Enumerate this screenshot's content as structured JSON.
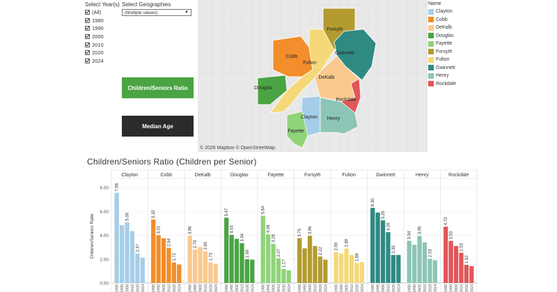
{
  "filters": {
    "years_label": "Select Year(s)",
    "years": [
      "(All)",
      "1980",
      "1990",
      "2000",
      "2010",
      "2020",
      "2024"
    ],
    "geo_label": "Select Geographies",
    "geo_value": "(Multiple values)"
  },
  "buttons": {
    "ratio": "Children/Seniors Ratio",
    "median": "Median Age"
  },
  "map": {
    "credit": "© 2026 Mapbox  © OpenStreetMap",
    "labels": [
      "Forsyth",
      "Cobb",
      "Fulton",
      "Gwinnett",
      "DeKalb",
      "Douglas",
      "Rockdale",
      "Clayton",
      "Henry",
      "Fayette"
    ]
  },
  "legend": {
    "title": "Name",
    "items": [
      {
        "name": "Clayton",
        "color": "#a6cde8"
      },
      {
        "name": "Cobb",
        "color": "#f28e2b"
      },
      {
        "name": "DeKalb",
        "color": "#fbc98e"
      },
      {
        "name": "Douglas",
        "color": "#4aa443"
      },
      {
        "name": "Fayette",
        "color": "#8fd37a"
      },
      {
        "name": "Forsyth",
        "color": "#b39b2f"
      },
      {
        "name": "Fulton",
        "color": "#f5d878"
      },
      {
        "name": "Gwinnett",
        "color": "#2f8a84"
      },
      {
        "name": "Henry",
        "color": "#8cc5b5"
      },
      {
        "name": "Rockdale",
        "color": "#e15759"
      }
    ]
  },
  "chart_title": "Children/Seniors Ratio (Children per Senior)",
  "chart_data": {
    "type": "bar",
    "ylabel": "Children/Seniors Ratio",
    "ylim": [
      0,
      9
    ],
    "yticks": [
      "0.00",
      "2.00",
      "4.00",
      "6.00",
      "8.00"
    ],
    "year_ticks": [
      "1980",
      "1990",
      "2000",
      "2010",
      "2020",
      "2024"
    ],
    "series": [
      {
        "name": "Clayton",
        "color": "#a6cde8",
        "values": [
          7.56,
          4.85,
          5.09,
          4.35,
          2.47,
          2.12
        ],
        "labels": [
          "7.56",
          "",
          "5.09",
          "",
          "2.47",
          ""
        ]
      },
      {
        "name": "Cobb",
        "color": "#f28e2b",
        "values": [
          5.32,
          4.01,
          3.75,
          2.94,
          1.72,
          1.55
        ],
        "labels": [
          "5.32",
          "4.01",
          "",
          "2.94",
          "1.72",
          ""
        ]
      },
      {
        "name": "DeKalb",
        "color": "#fbc98e",
        "values": [
          3.96,
          2.79,
          3.02,
          2.65,
          1.73,
          1.6
        ],
        "labels": [
          "3.96",
          "2.79",
          "",
          "2.65",
          "1.73",
          ""
        ]
      },
      {
        "name": "Douglas",
        "color": "#4aa443",
        "values": [
          5.47,
          4.03,
          3.7,
          3.34,
          1.99,
          1.95
        ],
        "labels": [
          "5.47",
          "4.03",
          "",
          "3.34",
          "1.99",
          ""
        ]
      },
      {
        "name": "Fayette",
        "color": "#8fd37a",
        "values": [
          5.64,
          4.08,
          3.28,
          2.07,
          1.17,
          1.05
        ],
        "labels": [
          "5.64",
          "4.08",
          "3.28",
          "2.07",
          "1.17",
          ""
        ]
      },
      {
        "name": "Forsyth",
        "color": "#b39b2f",
        "values": [
          3.75,
          2.9,
          3.96,
          3.1,
          2.22,
          1.95
        ],
        "labels": [
          "3.75",
          "",
          "3.96",
          "",
          "2.22",
          ""
        ]
      },
      {
        "name": "Fulton",
        "color": "#f5d878",
        "values": [
          2.59,
          2.45,
          2.89,
          2.35,
          1.68,
          1.75
        ],
        "labels": [
          "2.59",
          "",
          "2.89",
          "",
          "1.68",
          ""
        ]
      },
      {
        "name": "Gwinnett",
        "color": "#2f8a84",
        "values": [
          6.3,
          5.9,
          5.25,
          4.26,
          2.35,
          2.35
        ],
        "labels": [
          "6.30",
          "",
          "5.25",
          "4.26",
          "2.35",
          ""
        ]
      },
      {
        "name": "Henry",
        "color": "#8cc5b5",
        "values": [
          3.54,
          3.2,
          3.95,
          3.4,
          2.03,
          1.9
        ],
        "labels": [
          "3.54",
          "",
          "3.95",
          "",
          "2.03",
          ""
        ]
      },
      {
        "name": "Rockdale",
        "color": "#e15759",
        "values": [
          4.72,
          3.53,
          3.1,
          2.53,
          1.52,
          1.4
        ],
        "labels": [
          "4.72",
          "3.53",
          "",
          "2.53",
          "1.52",
          ""
        ]
      }
    ]
  }
}
